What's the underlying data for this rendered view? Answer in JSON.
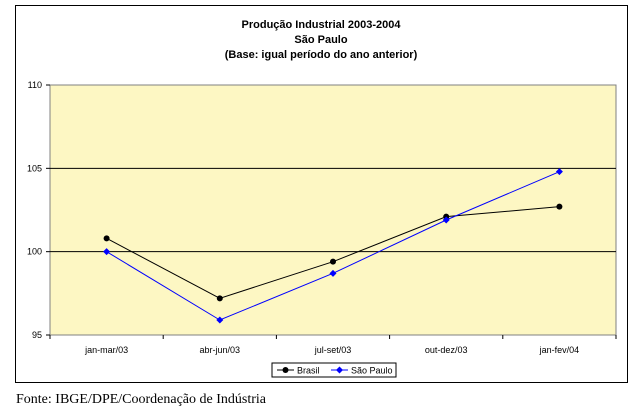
{
  "chart_data": {
    "type": "line",
    "title_lines": [
      "Produção Industrial 2003-2004",
      "São Paulo",
      "(Base: igual período do ano anterior)"
    ],
    "categories": [
      "jan-mar/03",
      "abr-jun/03",
      "jul-set/03",
      "out-dez/03",
      "jan-fev/04"
    ],
    "series": [
      {
        "name": "Brasil",
        "color": "#000000",
        "marker": "circle",
        "values": [
          100.8,
          97.2,
          99.4,
          102.1,
          102.7
        ]
      },
      {
        "name": "São Paulo",
        "color": "#0000ff",
        "marker": "diamond",
        "values": [
          100.0,
          95.9,
          98.7,
          101.9,
          104.8
        ]
      }
    ],
    "ylim": [
      95,
      110
    ],
    "yticks": [
      "110",
      "105",
      "100",
      "95"
    ],
    "grid": "horizontal major gridlines",
    "plot_background": "#fdf7c3",
    "legend": "bottom-center"
  },
  "footer": "Fonte: IBGE/DPE/Coordenação de Indústria"
}
